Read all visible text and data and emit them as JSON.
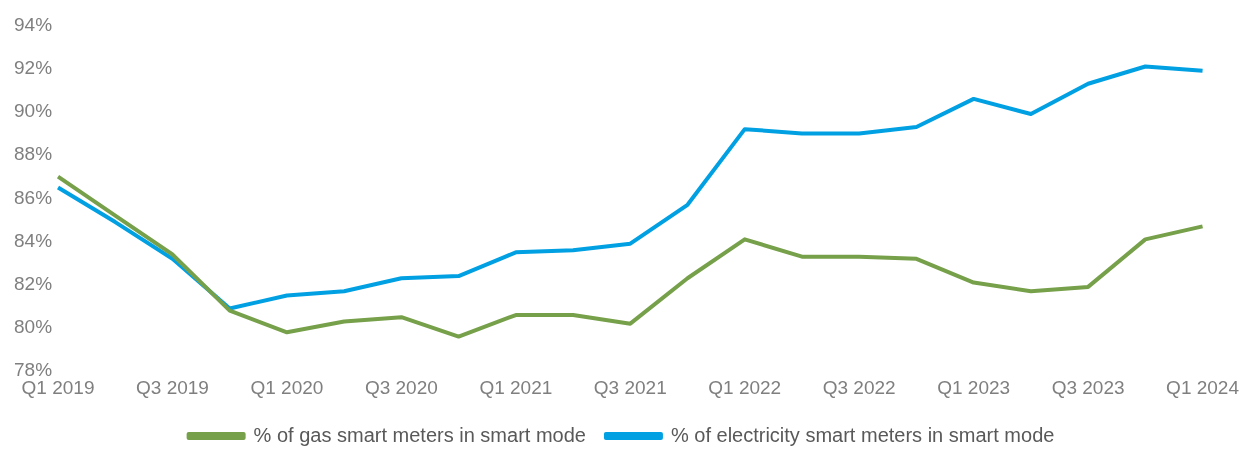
{
  "chart_data": {
    "type": "line",
    "categories": [
      "Q1 2019",
      null,
      "Q3 2019",
      null,
      "Q1 2020",
      null,
      "Q3 2020",
      null,
      "Q1 2021",
      null,
      "Q3 2021",
      null,
      "Q1 2022",
      null,
      "Q3 2022",
      null,
      "Q1 2023",
      null,
      "Q3 2023",
      null,
      "Q1 2024"
    ],
    "series": [
      {
        "name": "% of gas smart meters in smart mode",
        "color": "#77a04a",
        "values": [
          87.0,
          85.2,
          83.4,
          80.8,
          79.8,
          80.3,
          80.5,
          79.6,
          80.6,
          80.6,
          80.2,
          82.3,
          84.1,
          83.3,
          83.3,
          83.2,
          82.1,
          81.7,
          81.9,
          84.1,
          84.7
        ]
      },
      {
        "name": "% of electricity smart meters in smart mode",
        "color": "#00a0e3",
        "values": [
          86.5,
          84.9,
          83.2,
          80.9,
          81.5,
          81.7,
          82.3,
          82.4,
          83.5,
          83.6,
          83.9,
          85.7,
          89.2,
          89.0,
          89.0,
          89.3,
          90.6,
          89.9,
          91.3,
          92.1,
          91.9
        ]
      }
    ],
    "ylim": [
      78,
      94
    ],
    "yticks": [
      {
        "value": 78,
        "label": "78%"
      },
      {
        "value": 80,
        "label": "80%"
      },
      {
        "value": 82,
        "label": "82%"
      },
      {
        "value": 84,
        "label": "84%"
      },
      {
        "value": 86,
        "label": "86%"
      },
      {
        "value": 88,
        "label": "88%"
      },
      {
        "value": 90,
        "label": "90%"
      },
      {
        "value": 92,
        "label": "92%"
      },
      {
        "value": 94,
        "label": "94%"
      }
    ],
    "grid": false,
    "legend": "bottom",
    "marker": "none",
    "line_style": "solid"
  }
}
